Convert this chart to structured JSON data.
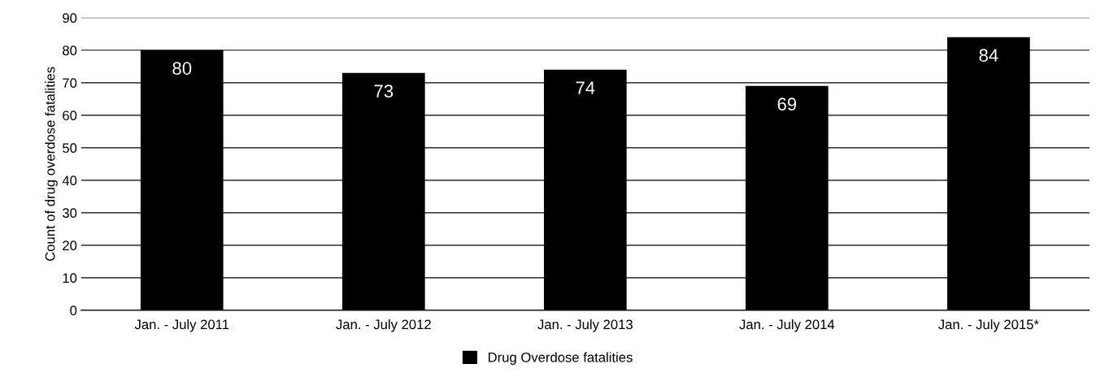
{
  "chart_data": {
    "type": "bar",
    "ylabel": "Count of drug overdose fatalities",
    "categories": [
      "Jan. - July 2011",
      "Jan. - July 2012",
      "Jan. - July 2013",
      "Jan. - July 2014",
      "Jan. - July 2015*"
    ],
    "series": [
      {
        "name": "Drug Overdose fatalities",
        "color": "#000000",
        "values": [
          80,
          73,
          74,
          69,
          84
        ]
      }
    ],
    "ylim": [
      0,
      90
    ],
    "yticks": [
      0,
      10,
      20,
      30,
      40,
      50,
      60,
      70,
      80,
      90
    ],
    "grid": "y",
    "legend": "bottom",
    "data_labels": true
  }
}
